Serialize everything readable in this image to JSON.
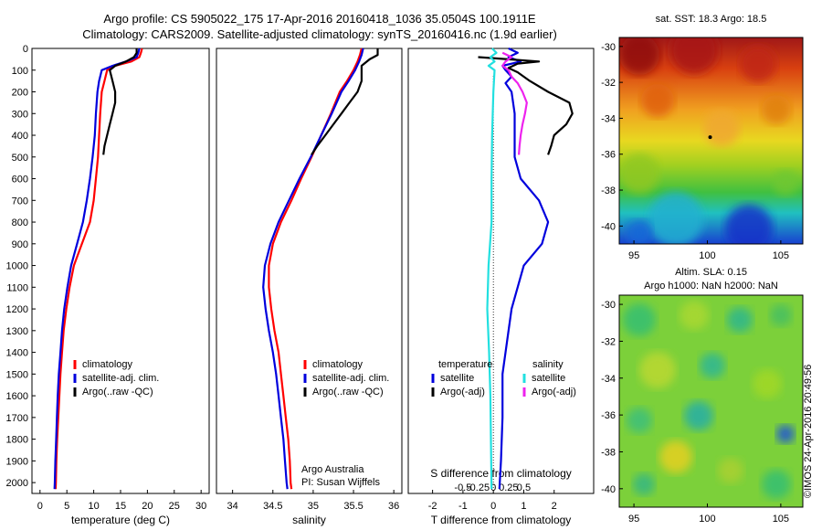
{
  "title_line1": "Argo profile: CS 5905022_175 17-Apr-2016 20160418_1036 35.0504S 100.1911E",
  "title_line2": "Climatology: CARS2009. Satellite-adjusted climatology: synTS_20160416.nc (1.9d earlier)",
  "credit": "©IMOS 24-Apr-2016 20:49:56",
  "colors": {
    "climatology": "#ff0000",
    "satellite": "#0000dd",
    "argo": "#000000",
    "satellite_s": "#22e0e0",
    "argo_s": "#ee22ee"
  },
  "chart_data": [
    {
      "type": "line",
      "xlabel": "temperature (deg C)",
      "xticks": [
        0,
        5,
        10,
        15,
        20,
        25,
        30
      ],
      "xlim": [
        -1.5,
        31.5
      ],
      "ylim": [
        0,
        2050
      ],
      "yticks": [
        0,
        100,
        200,
        300,
        400,
        500,
        600,
        700,
        800,
        900,
        1000,
        1100,
        1200,
        1300,
        1400,
        1500,
        1600,
        1700,
        1800,
        1900,
        2000
      ],
      "legend": [
        "climatology",
        "satellite-adj. clim.",
        "Argo(..raw -QC)"
      ],
      "series": [
        {
          "name": "climatology",
          "color": "#ff0000",
          "points": [
            [
              19,
              0
            ],
            [
              18.8,
              20
            ],
            [
              18.5,
              40
            ],
            [
              17,
              60
            ],
            [
              14,
              80
            ],
            [
              12.5,
              100
            ],
            [
              12,
              150
            ],
            [
              11.5,
              200
            ],
            [
              11.2,
              300
            ],
            [
              11,
              400
            ],
            [
              10.8,
              500
            ],
            [
              10.4,
              600
            ],
            [
              10,
              700
            ],
            [
              9.3,
              800
            ],
            [
              7.8,
              900
            ],
            [
              6.3,
              1000
            ],
            [
              5.5,
              1100
            ],
            [
              4.9,
              1200
            ],
            [
              4.4,
              1300
            ],
            [
              4.1,
              1400
            ],
            [
              3.8,
              1500
            ],
            [
              3.6,
              1600
            ],
            [
              3.4,
              1700
            ],
            [
              3.2,
              1800
            ],
            [
              3.05,
              1900
            ],
            [
              2.95,
              2000
            ],
            [
              2.9,
              2030
            ]
          ]
        },
        {
          "name": "satellite-adj. clim.",
          "color": "#0000dd",
          "points": [
            [
              18.5,
              0
            ],
            [
              18.3,
              20
            ],
            [
              18,
              40
            ],
            [
              16,
              60
            ],
            [
              13.5,
              80
            ],
            [
              11.5,
              100
            ],
            [
              11,
              150
            ],
            [
              10.7,
              200
            ],
            [
              10.4,
              300
            ],
            [
              10.2,
              400
            ],
            [
              9.8,
              500
            ],
            [
              9.3,
              600
            ],
            [
              8.7,
              700
            ],
            [
              8,
              800
            ],
            [
              6.9,
              900
            ],
            [
              5.8,
              1000
            ],
            [
              5.1,
              1100
            ],
            [
              4.5,
              1200
            ],
            [
              4.1,
              1300
            ],
            [
              3.8,
              1400
            ],
            [
              3.5,
              1500
            ],
            [
              3.3,
              1600
            ],
            [
              3.15,
              1700
            ],
            [
              3.0,
              1800
            ],
            [
              2.85,
              1900
            ],
            [
              2.75,
              2000
            ],
            [
              2.7,
              2030
            ]
          ]
        },
        {
          "name": "Argo(..raw -QC)",
          "color": "#000000",
          "points": [
            [
              18,
              0
            ],
            [
              18,
              20
            ],
            [
              17.5,
              40
            ],
            [
              16,
              60
            ],
            [
              14,
              80
            ],
            [
              13,
              100
            ],
            [
              13.5,
              150
            ],
            [
              14,
              200
            ],
            [
              14,
              250
            ],
            [
              13.5,
              300
            ],
            [
              13,
              350
            ],
            [
              12.5,
              400
            ],
            [
              12,
              450
            ],
            [
              11.8,
              490
            ]
          ]
        }
      ]
    },
    {
      "type": "line",
      "xlabel": "salinity",
      "xticks": [
        34,
        34.5,
        35,
        35.5,
        36
      ],
      "xlim": [
        33.8,
        36.1
      ],
      "ylim": [
        0,
        2050
      ],
      "legend": [
        "climatology",
        "satellite-adj. clim.",
        "Argo(..raw -QC)"
      ],
      "annotation": [
        "Argo Australia",
        "PI: Susan Wijffels"
      ],
      "series": [
        {
          "name": "climatology",
          "color": "#ff0000",
          "points": [
            [
              35.6,
              0
            ],
            [
              35.58,
              30
            ],
            [
              35.55,
              60
            ],
            [
              35.5,
              100
            ],
            [
              35.42,
              150
            ],
            [
              35.33,
              200
            ],
            [
              35.22,
              300
            ],
            [
              35.1,
              400
            ],
            [
              34.98,
              500
            ],
            [
              34.85,
              600
            ],
            [
              34.73,
              700
            ],
            [
              34.6,
              800
            ],
            [
              34.5,
              900
            ],
            [
              34.45,
              1000
            ],
            [
              34.45,
              1100
            ],
            [
              34.48,
              1200
            ],
            [
              34.52,
              1300
            ],
            [
              34.57,
              1400
            ],
            [
              34.6,
              1500
            ],
            [
              34.63,
              1600
            ],
            [
              34.66,
              1700
            ],
            [
              34.69,
              1800
            ],
            [
              34.71,
              1900
            ],
            [
              34.72,
              2000
            ],
            [
              34.73,
              2030
            ]
          ]
        },
        {
          "name": "satellite-adj. clim.",
          "color": "#0000dd",
          "points": [
            [
              35.62,
              0
            ],
            [
              35.6,
              30
            ],
            [
              35.57,
              60
            ],
            [
              35.52,
              100
            ],
            [
              35.44,
              150
            ],
            [
              35.35,
              200
            ],
            [
              35.23,
              300
            ],
            [
              35.1,
              400
            ],
            [
              34.97,
              500
            ],
            [
              34.83,
              600
            ],
            [
              34.7,
              700
            ],
            [
              34.57,
              800
            ],
            [
              34.47,
              900
            ],
            [
              34.4,
              1000
            ],
            [
              34.38,
              1100
            ],
            [
              34.41,
              1200
            ],
            [
              34.45,
              1300
            ],
            [
              34.5,
              1400
            ],
            [
              34.54,
              1500
            ],
            [
              34.57,
              1600
            ],
            [
              34.6,
              1700
            ],
            [
              34.63,
              1800
            ],
            [
              34.65,
              1900
            ],
            [
              34.67,
              2000
            ],
            [
              34.68,
              2030
            ]
          ]
        },
        {
          "name": "Argo(..raw -QC)",
          "color": "#000000",
          "points": [
            [
              35.8,
              0
            ],
            [
              35.8,
              30
            ],
            [
              35.7,
              50
            ],
            [
              35.6,
              80
            ],
            [
              35.6,
              100
            ],
            [
              35.6,
              150
            ],
            [
              35.55,
              200
            ],
            [
              35.45,
              250
            ],
            [
              35.35,
              300
            ],
            [
              35.25,
              350
            ],
            [
              35.15,
              400
            ],
            [
              35.05,
              450
            ],
            [
              34.98,
              490
            ]
          ]
        }
      ]
    },
    {
      "type": "line",
      "xlabel": "T difference from climatology",
      "xticks": [
        -2,
        -1,
        0,
        1,
        2
      ],
      "xlim": [
        -2.8,
        3.3
      ],
      "toplabel": "S difference from climatology",
      "topticks": [
        "-0.5",
        "-0.25",
        "0",
        "0.25",
        "0.5"
      ],
      "ylim": [
        0,
        2050
      ],
      "legend_groups": [
        {
          "title": "temperature",
          "items": [
            [
              "satellite",
              "#0000dd"
            ],
            [
              "Argo(-adj)",
              "#000000"
            ]
          ]
        },
        {
          "title": "salinity",
          "items": [
            [
              "satellite",
              "#22e0e0"
            ],
            [
              "Argo(-adj)",
              "#ee22ee"
            ]
          ]
        }
      ],
      "series": [
        {
          "name": "T satellite",
          "color": "#0000dd",
          "points": [
            [
              0.5,
              0
            ],
            [
              0.8,
              20
            ],
            [
              0.5,
              40
            ],
            [
              0.9,
              60
            ],
            [
              0.3,
              80
            ],
            [
              0.4,
              100
            ],
            [
              0.6,
              130
            ],
            [
              0.4,
              160
            ],
            [
              0.6,
              200
            ],
            [
              0.7,
              300
            ],
            [
              0.7,
              400
            ],
            [
              0.7,
              500
            ],
            [
              0.9,
              600
            ],
            [
              1.5,
              700
            ],
            [
              1.8,
              800
            ],
            [
              1.6,
              900
            ],
            [
              1.0,
              1000
            ],
            [
              0.8,
              1100
            ],
            [
              0.6,
              1200
            ],
            [
              0.5,
              1300
            ],
            [
              0.4,
              1400
            ],
            [
              0.3,
              1500
            ],
            [
              0.3,
              1700
            ],
            [
              0.25,
              1900
            ],
            [
              0.2,
              2030
            ]
          ]
        },
        {
          "name": "T Argo(-adj)",
          "color": "#000000",
          "points": [
            [
              -0.5,
              40
            ],
            [
              0.5,
              50
            ],
            [
              1.5,
              60
            ],
            [
              0.8,
              70
            ],
            [
              0.5,
              90
            ],
            [
              0.8,
              110
            ],
            [
              1.2,
              150
            ],
            [
              1.8,
              200
            ],
            [
              2.5,
              250
            ],
            [
              2.6,
              300
            ],
            [
              2.4,
              350
            ],
            [
              2.0,
              400
            ],
            [
              1.9,
              450
            ],
            [
              1.8,
              490
            ]
          ]
        },
        {
          "name": "S satellite",
          "color": "#22e0e0",
          "points": [
            [
              -0.02,
              0
            ],
            [
              0.05,
              20
            ],
            [
              -0.05,
              40
            ],
            [
              0.02,
              60
            ],
            [
              -0.08,
              80
            ],
            [
              0.02,
              100
            ],
            [
              0.0,
              200
            ],
            [
              -0.02,
              400
            ],
            [
              -0.03,
              600
            ],
            [
              -0.03,
              800
            ],
            [
              -0.08,
              1000
            ],
            [
              -0.1,
              1200
            ],
            [
              -0.07,
              1400
            ],
            [
              -0.05,
              1600
            ],
            [
              -0.04,
              1800
            ],
            [
              -0.03,
              2030
            ]
          ]
        },
        {
          "name": "S Argo(-adj)",
          "color": "#ee22ee",
          "points": [
            [
              0.15,
              20
            ],
            [
              0.3,
              40
            ],
            [
              0.2,
              60
            ],
            [
              0.15,
              80
            ],
            [
              0.25,
              100
            ],
            [
              0.3,
              130
            ],
            [
              0.4,
              160
            ],
            [
              0.48,
              200
            ],
            [
              0.55,
              250
            ],
            [
              0.52,
              300
            ],
            [
              0.48,
              350
            ],
            [
              0.45,
              400
            ],
            [
              0.43,
              450
            ],
            [
              0.42,
              490
            ]
          ]
        }
      ]
    },
    {
      "type": "heatmap",
      "title": "sat. SST: 18.3 Argo: 18.5",
      "xticks": [
        95,
        100,
        105
      ],
      "yticks": [
        -30,
        -32,
        -34,
        -36,
        -38,
        -40
      ],
      "xlim": [
        94,
        106.5
      ],
      "ylim": [
        -41,
        -29.5
      ],
      "argo_position": [
        100.19,
        -35.05
      ]
    },
    {
      "type": "heatmap",
      "title": [
        "Altim. SLA: 0.15",
        "Argo h1000: NaN h2000: NaN"
      ],
      "xticks": [
        95,
        100,
        105
      ],
      "yticks": [
        -30,
        -32,
        -34,
        -36,
        -38,
        -40
      ],
      "xlim": [
        94,
        106.5
      ],
      "ylim": [
        -41,
        -29.5
      ]
    }
  ]
}
